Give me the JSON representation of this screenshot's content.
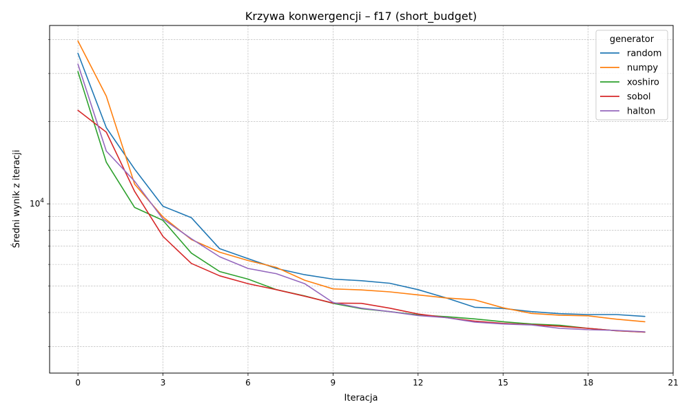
{
  "chart_data": {
    "type": "line",
    "title": "Krzywa konwergencji – f17 (short_budget)",
    "xlabel": "Iteracja",
    "ylabel": "Średni wynik z iteracji",
    "xlim": [
      -1,
      21
    ],
    "ylim": [
      2400,
      45000
    ],
    "yscale": "log",
    "xticks": [
      0,
      3,
      6,
      9,
      12,
      15,
      18,
      21
    ],
    "yticks_major": [
      10000
    ],
    "ytick_major_label": {
      "base": "10",
      "exp": "4"
    },
    "yticks_minor": [
      3000,
      4000,
      5000,
      6000,
      7000,
      8000,
      9000,
      20000,
      30000,
      40000
    ],
    "grid": true,
    "legend": {
      "title": "generator",
      "position": "top-right"
    },
    "x": [
      0,
      1,
      2,
      3,
      4,
      5,
      6,
      7,
      8,
      9,
      10,
      11,
      12,
      13,
      14,
      15,
      16,
      17,
      18,
      19,
      20
    ],
    "series": [
      {
        "name": "random",
        "color": "#1f77b4",
        "values": [
          35600,
          19000,
          13400,
          9800,
          8900,
          6850,
          6300,
          5800,
          5500,
          5300,
          5230,
          5120,
          4850,
          4520,
          4180,
          4140,
          4030,
          3960,
          3930,
          3930,
          3870
        ]
      },
      {
        "name": "numpy",
        "color": "#ff7f0e",
        "values": [
          39500,
          24800,
          11800,
          8950,
          7400,
          6650,
          6200,
          5850,
          5250,
          4880,
          4840,
          4760,
          4640,
          4520,
          4450,
          4160,
          3970,
          3910,
          3890,
          3780,
          3700
        ]
      },
      {
        "name": "xoshiro",
        "color": "#2ca02c",
        "values": [
          30500,
          14200,
          9700,
          8700,
          6600,
          5650,
          5300,
          4850,
          4600,
          4320,
          4130,
          4030,
          3920,
          3860,
          3790,
          3700,
          3630,
          3590,
          3500,
          3430,
          3390
        ]
      },
      {
        "name": "sobol",
        "color": "#d62728",
        "values": [
          22000,
          18300,
          11100,
          7600,
          6050,
          5450,
          5100,
          4850,
          4590,
          4330,
          4320,
          4150,
          3950,
          3830,
          3720,
          3650,
          3610,
          3560,
          3500,
          3430,
          3390
        ]
      },
      {
        "name": "halton",
        "color": "#9467bd",
        "values": [
          32500,
          15600,
          12100,
          8800,
          7450,
          6400,
          5800,
          5550,
          5100,
          4350,
          4150,
          4030,
          3900,
          3830,
          3690,
          3630,
          3600,
          3500,
          3460,
          3440,
          3400
        ]
      }
    ]
  }
}
